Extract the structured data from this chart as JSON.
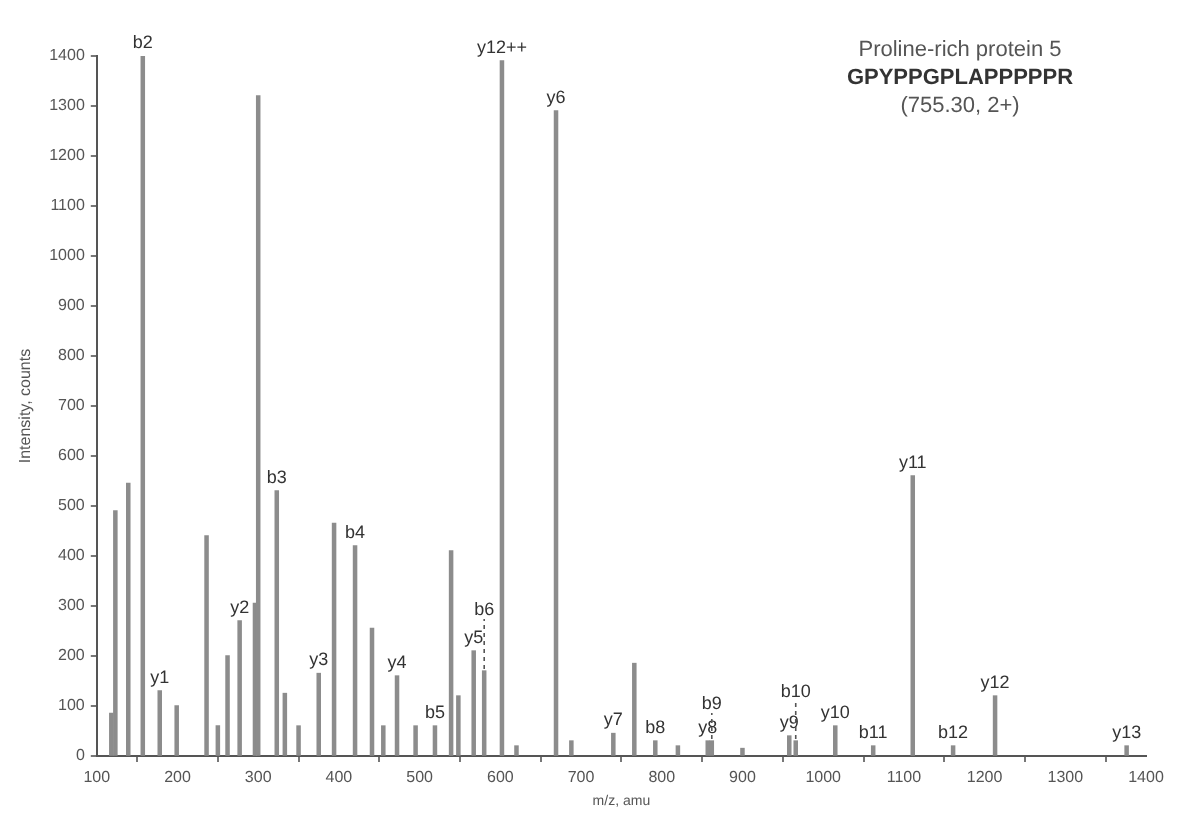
{
  "chart_data": {
    "type": "bar",
    "title": "Proline-rich protein 5",
    "subtitle": "GPYPPGPLAPPPPPR",
    "xlabel": "m/z, amu",
    "ylabel": "Intensity, counts",
    "x": [
      118,
      123,
      139,
      157,
      178,
      199,
      236,
      250,
      262,
      277,
      296,
      300,
      323,
      333,
      350,
      375,
      394,
      420,
      441,
      455,
      472,
      495,
      519,
      539,
      548,
      567,
      580,
      602,
      620,
      669,
      688,
      740,
      766,
      792,
      820,
      857,
      862,
      900,
      958,
      966,
      1015,
      1062,
      1111,
      1161,
      1213,
      1376
    ],
    "values": [
      85,
      490,
      545,
      1400,
      130,
      100,
      440,
      60,
      200,
      270,
      305,
      1320,
      530,
      125,
      60,
      165,
      465,
      420,
      255,
      60,
      160,
      60,
      60,
      410,
      120,
      210,
      170,
      1390,
      20,
      1290,
      30,
      45,
      185,
      30,
      20,
      30,
      30,
      15,
      40,
      30,
      60,
      20,
      560,
      20,
      120,
      20
    ],
    "color": "#8c8c8c",
    "xlim": [
      100,
      1400
    ],
    "xticks": [
      100,
      200,
      300,
      400,
      500,
      600,
      700,
      800,
      900,
      1000,
      1100,
      1200,
      1300,
      1400
    ],
    "ylim": [
      0,
      1400
    ],
    "yticks": [
      0,
      100,
      200,
      300,
      400,
      500,
      600,
      700,
      800,
      900,
      1000,
      1100,
      1200,
      1300,
      1400
    ],
    "grid": false,
    "legend": false,
    "annotations": [
      "(755.30, 2+)",
      {
        "text": "b2",
        "x": 157,
        "y": 1400
      },
      {
        "text": "y1",
        "x": 178,
        "y": 130
      },
      {
        "text": "y2",
        "x": 277,
        "y": 270
      },
      {
        "text": "b3",
        "x": 323,
        "y": 530
      },
      {
        "text": "y3",
        "x": 375,
        "y": 165
      },
      {
        "text": "b4",
        "x": 420,
        "y": 420
      },
      {
        "text": "y4",
        "x": 472,
        "y": 160
      },
      {
        "text": "b5",
        "x": 519,
        "y": 60
      },
      {
        "text": "y5",
        "x": 567,
        "y": 210
      },
      {
        "text": "b6",
        "x": 580,
        "y": 170
      },
      {
        "text": "y12++",
        "x": 602,
        "y": 1390
      },
      {
        "text": "y6",
        "x": 669,
        "y": 1290
      },
      {
        "text": "y7",
        "x": 740,
        "y": 45
      },
      {
        "text": "b8",
        "x": 792,
        "y": 30
      },
      {
        "text": "y8",
        "x": 857,
        "y": 30
      },
      {
        "text": "b9",
        "x": 862,
        "y": 30
      },
      {
        "text": "y9",
        "x": 958,
        "y": 40
      },
      {
        "text": "b10",
        "x": 966,
        "y": 30
      },
      {
        "text": "y10",
        "x": 1015,
        "y": 60
      },
      {
        "text": "b11",
        "x": 1062,
        "y": 20
      },
      {
        "text": "y11",
        "x": 1111,
        "y": 560
      },
      {
        "text": "b12",
        "x": 1161,
        "y": 20
      },
      {
        "text": "y12",
        "x": 1213,
        "y": 120
      },
      {
        "text": "y13",
        "x": 1376,
        "y": 20
      }
    ]
  }
}
